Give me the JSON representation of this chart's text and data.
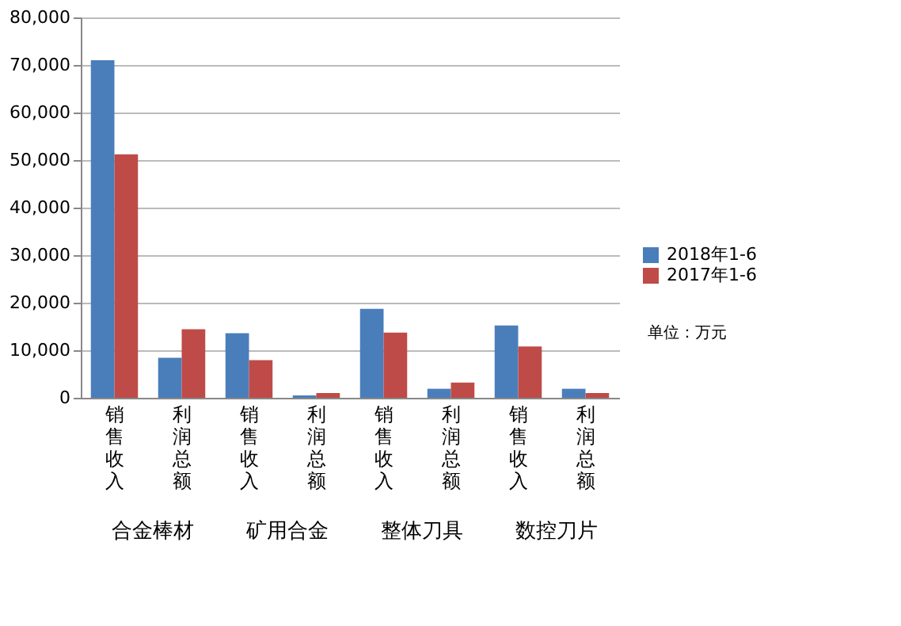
{
  "chart_data": {
    "type": "bar",
    "categories": [
      "销售收入",
      "利润总额",
      "销售收入",
      "利润总额",
      "销售收入",
      "利润总额",
      "销售收入",
      "利润总额"
    ],
    "series": [
      {
        "name": "2018年1-6",
        "color": "#4a7ebb",
        "values": [
          71000,
          8400,
          13600,
          500,
          18700,
          1900,
          15200,
          1900
        ]
      },
      {
        "name": "2017年1-6",
        "color": "#be4b48",
        "values": [
          51200,
          14400,
          7900,
          1000,
          13700,
          3200,
          10800,
          1000
        ]
      }
    ],
    "ylim": [
      0,
      80000
    ],
    "yticks": [
      0,
      {
        "value": 10000,
        "label": "10,000"
      },
      {
        "value": 20000,
        "label": "20,000"
      },
      {
        "value": 30000,
        "label": "30,000"
      },
      {
        "value": 40000,
        "label": "40,000"
      },
      {
        "value": 50000,
        "label": "50,000"
      },
      {
        "value": 60000,
        "label": "60,000"
      },
      {
        "value": 70000,
        "label": "70,000"
      },
      {
        "value": 80000,
        "label": "80,000"
      }
    ],
    "grid": "y",
    "legend": "right",
    "annotations": [
      "合金棒材",
      "矿用合金",
      "整体刀具",
      "数控刀片",
      "单位：万元"
    ]
  }
}
